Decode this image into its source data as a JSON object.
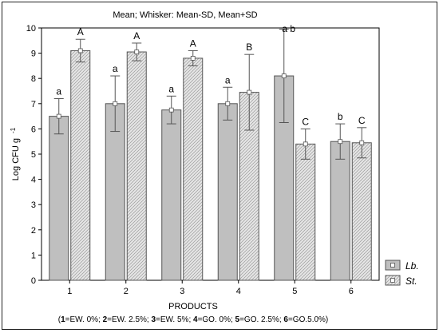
{
  "chart_data": {
    "type": "bar",
    "title": "Mean;  Whisker: Mean-SD, Mean+SD",
    "xlabel": "PRODUCTS",
    "ylabel_main": "Log CFU g",
    "ylabel_sup": "-1",
    "ylim": [
      0,
      10
    ],
    "yticks": [
      "0",
      "1",
      "2",
      "3",
      "4",
      "5",
      "6",
      "7",
      "8",
      "9",
      "10"
    ],
    "grid": false,
    "legend_position": "right",
    "categories": [
      "1",
      "2",
      "3",
      "4",
      "5",
      "6"
    ],
    "series": [
      {
        "name": "Lb.",
        "color": "#bfbfbf",
        "pattern": "solid",
        "values": [
          6.5,
          7.0,
          6.75,
          7.0,
          8.1,
          5.5
        ],
        "sd": [
          0.7,
          1.1,
          0.55,
          0.65,
          1.85,
          0.7
        ],
        "letters": [
          "a",
          "a",
          "a",
          "a",
          "a b",
          "b"
        ]
      },
      {
        "name": "St.",
        "color": "#d9d9d9",
        "pattern": "hatched",
        "values": [
          9.1,
          9.05,
          8.8,
          7.45,
          5.4,
          5.45
        ],
        "sd": [
          0.45,
          0.35,
          0.3,
          1.5,
          0.6,
          0.6
        ],
        "letters": [
          "A",
          "A",
          "A",
          "B",
          "C",
          "C"
        ]
      }
    ],
    "footnote": [
      {
        "num": "1",
        "text": "=EW. 0%; "
      },
      {
        "num": "2",
        "text": "=EW. 2.5%; "
      },
      {
        "num": "3",
        "text": "=EW. 5%; "
      },
      {
        "num": "4",
        "text": "=GO. 0%; "
      },
      {
        "num": "5",
        "text": "=GO. 2.5%; "
      },
      {
        "num": "6",
        "text": "=GO.5.0%)"
      }
    ],
    "footnote_open": "("
  }
}
